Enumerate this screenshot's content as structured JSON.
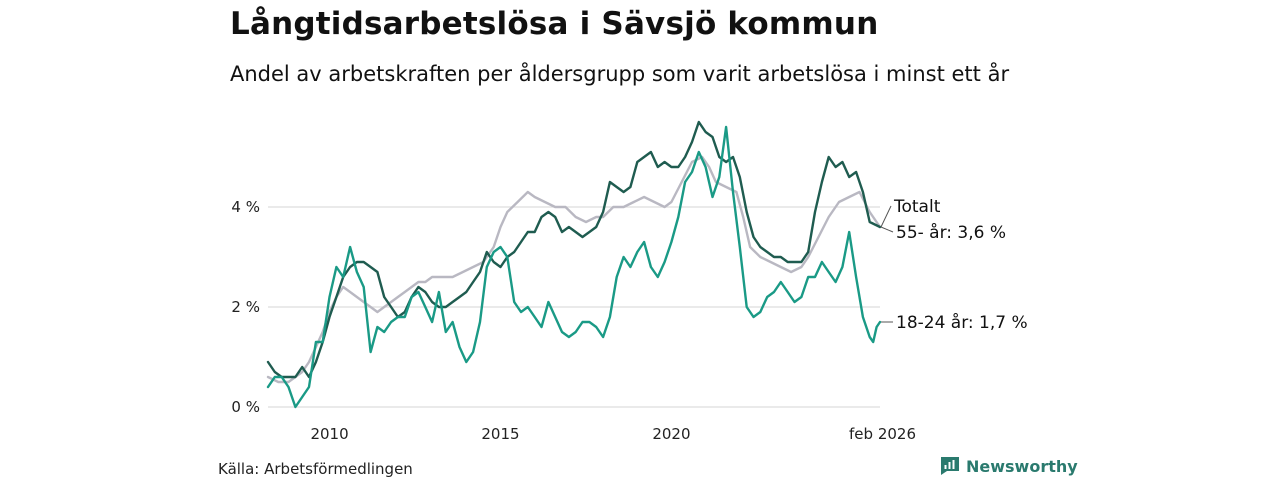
{
  "title": "Långtidsarbetslösa i Sävsjö kommun",
  "subtitle": "Andel av arbetskraften per åldersgrupp som varit arbetslösa i minst ett år",
  "source": "Källa: Arbetsförmedlingen",
  "brand": "Newsworthy",
  "chart_data": {
    "type": "line",
    "xlim": [
      2008.2,
      2026.1
    ],
    "ylim": [
      0,
      5.8
    ],
    "x_ticks": [
      {
        "value": 2010,
        "label": "2010"
      },
      {
        "value": 2015,
        "label": "2015"
      },
      {
        "value": 2020,
        "label": "2020"
      },
      {
        "value": 2026.1,
        "label": "feb 2026"
      }
    ],
    "y_ticks": [
      {
        "value": 0,
        "label": "0 %"
      },
      {
        "value": 2,
        "label": "2 %"
      },
      {
        "value": 4,
        "label": "4 %"
      }
    ],
    "grid": "horizontal",
    "series": [
      {
        "name": "Totalt",
        "color": "#b9b8c2",
        "end_label": "Totalt",
        "points": [
          [
            2008.2,
            0.6
          ],
          [
            2008.5,
            0.5
          ],
          [
            2008.8,
            0.5
          ],
          [
            2009.0,
            0.6
          ],
          [
            2009.2,
            0.7
          ],
          [
            2009.4,
            0.9
          ],
          [
            2009.6,
            1.2
          ],
          [
            2009.8,
            1.5
          ],
          [
            2010.0,
            1.9
          ],
          [
            2010.2,
            2.2
          ],
          [
            2010.4,
            2.4
          ],
          [
            2010.6,
            2.3
          ],
          [
            2010.8,
            2.2
          ],
          [
            2011.0,
            2.1
          ],
          [
            2011.2,
            2.0
          ],
          [
            2011.4,
            1.9
          ],
          [
            2011.6,
            2.0
          ],
          [
            2011.8,
            2.1
          ],
          [
            2012.0,
            2.2
          ],
          [
            2012.2,
            2.3
          ],
          [
            2012.4,
            2.4
          ],
          [
            2012.6,
            2.5
          ],
          [
            2012.8,
            2.5
          ],
          [
            2013.0,
            2.6
          ],
          [
            2013.3,
            2.6
          ],
          [
            2013.6,
            2.6
          ],
          [
            2013.9,
            2.7
          ],
          [
            2014.2,
            2.8
          ],
          [
            2014.5,
            2.9
          ],
          [
            2014.8,
            3.2
          ],
          [
            2015.0,
            3.6
          ],
          [
            2015.2,
            3.9
          ],
          [
            2015.5,
            4.1
          ],
          [
            2015.8,
            4.3
          ],
          [
            2016.0,
            4.2
          ],
          [
            2016.3,
            4.1
          ],
          [
            2016.6,
            4.0
          ],
          [
            2016.9,
            4.0
          ],
          [
            2017.2,
            3.8
          ],
          [
            2017.5,
            3.7
          ],
          [
            2017.8,
            3.8
          ],
          [
            2018.0,
            3.8
          ],
          [
            2018.3,
            4.0
          ],
          [
            2018.6,
            4.0
          ],
          [
            2018.9,
            4.1
          ],
          [
            2019.2,
            4.2
          ],
          [
            2019.5,
            4.1
          ],
          [
            2019.8,
            4.0
          ],
          [
            2020.0,
            4.1
          ],
          [
            2020.3,
            4.5
          ],
          [
            2020.6,
            4.9
          ],
          [
            2020.9,
            5.0
          ],
          [
            2021.1,
            4.8
          ],
          [
            2021.3,
            4.5
          ],
          [
            2021.6,
            4.4
          ],
          [
            2021.9,
            4.3
          ],
          [
            2022.1,
            3.8
          ],
          [
            2022.3,
            3.2
          ],
          [
            2022.6,
            3.0
          ],
          [
            2022.9,
            2.9
          ],
          [
            2023.2,
            2.8
          ],
          [
            2023.5,
            2.7
          ],
          [
            2023.8,
            2.8
          ],
          [
            2024.0,
            3.0
          ],
          [
            2024.3,
            3.4
          ],
          [
            2024.6,
            3.8
          ],
          [
            2024.9,
            4.1
          ],
          [
            2025.2,
            4.2
          ],
          [
            2025.5,
            4.3
          ],
          [
            2025.8,
            3.9
          ],
          [
            2026.1,
            3.6
          ]
        ]
      },
      {
        "name": "55- år",
        "color": "#1f5c50",
        "end_label": "55- år: 3,6 %",
        "points": [
          [
            2008.2,
            0.9
          ],
          [
            2008.4,
            0.7
          ],
          [
            2008.6,
            0.6
          ],
          [
            2008.8,
            0.6
          ],
          [
            2009.0,
            0.6
          ],
          [
            2009.2,
            0.8
          ],
          [
            2009.4,
            0.6
          ],
          [
            2009.6,
            0.9
          ],
          [
            2009.8,
            1.3
          ],
          [
            2010.0,
            1.8
          ],
          [
            2010.2,
            2.2
          ],
          [
            2010.4,
            2.6
          ],
          [
            2010.6,
            2.8
          ],
          [
            2010.8,
            2.9
          ],
          [
            2011.0,
            2.9
          ],
          [
            2011.2,
            2.8
          ],
          [
            2011.4,
            2.7
          ],
          [
            2011.6,
            2.2
          ],
          [
            2011.8,
            2.0
          ],
          [
            2012.0,
            1.8
          ],
          [
            2012.2,
            1.9
          ],
          [
            2012.4,
            2.2
          ],
          [
            2012.6,
            2.4
          ],
          [
            2012.8,
            2.3
          ],
          [
            2013.0,
            2.1
          ],
          [
            2013.2,
            2.0
          ],
          [
            2013.4,
            2.0
          ],
          [
            2013.6,
            2.1
          ],
          [
            2013.8,
            2.2
          ],
          [
            2014.0,
            2.3
          ],
          [
            2014.2,
            2.5
          ],
          [
            2014.4,
            2.7
          ],
          [
            2014.6,
            3.1
          ],
          [
            2014.8,
            2.9
          ],
          [
            2015.0,
            2.8
          ],
          [
            2015.2,
            3.0
          ],
          [
            2015.4,
            3.1
          ],
          [
            2015.6,
            3.3
          ],
          [
            2015.8,
            3.5
          ],
          [
            2016.0,
            3.5
          ],
          [
            2016.2,
            3.8
          ],
          [
            2016.4,
            3.9
          ],
          [
            2016.6,
            3.8
          ],
          [
            2016.8,
            3.5
          ],
          [
            2017.0,
            3.6
          ],
          [
            2017.2,
            3.5
          ],
          [
            2017.4,
            3.4
          ],
          [
            2017.6,
            3.5
          ],
          [
            2017.8,
            3.6
          ],
          [
            2018.0,
            3.9
          ],
          [
            2018.2,
            4.5
          ],
          [
            2018.4,
            4.4
          ],
          [
            2018.6,
            4.3
          ],
          [
            2018.8,
            4.4
          ],
          [
            2019.0,
            4.9
          ],
          [
            2019.2,
            5.0
          ],
          [
            2019.4,
            5.1
          ],
          [
            2019.6,
            4.8
          ],
          [
            2019.8,
            4.9
          ],
          [
            2020.0,
            4.8
          ],
          [
            2020.2,
            4.8
          ],
          [
            2020.4,
            5.0
          ],
          [
            2020.6,
            5.3
          ],
          [
            2020.8,
            5.7
          ],
          [
            2021.0,
            5.5
          ],
          [
            2021.2,
            5.4
          ],
          [
            2021.4,
            5.0
          ],
          [
            2021.6,
            4.9
          ],
          [
            2021.8,
            5.0
          ],
          [
            2022.0,
            4.6
          ],
          [
            2022.2,
            3.9
          ],
          [
            2022.4,
            3.4
          ],
          [
            2022.6,
            3.2
          ],
          [
            2022.8,
            3.1
          ],
          [
            2023.0,
            3.0
          ],
          [
            2023.2,
            3.0
          ],
          [
            2023.4,
            2.9
          ],
          [
            2023.6,
            2.9
          ],
          [
            2023.8,
            2.9
          ],
          [
            2024.0,
            3.1
          ],
          [
            2024.2,
            3.9
          ],
          [
            2024.4,
            4.5
          ],
          [
            2024.6,
            5.0
          ],
          [
            2024.8,
            4.8
          ],
          [
            2025.0,
            4.9
          ],
          [
            2025.2,
            4.6
          ],
          [
            2025.4,
            4.7
          ],
          [
            2025.6,
            4.3
          ],
          [
            2025.8,
            3.7
          ],
          [
            2026.1,
            3.6
          ]
        ]
      },
      {
        "name": "18-24 år",
        "color": "#1a9a86",
        "end_label": "18-24 år: 1,7 %",
        "points": [
          [
            2008.2,
            0.4
          ],
          [
            2008.4,
            0.6
          ],
          [
            2008.6,
            0.6
          ],
          [
            2008.8,
            0.4
          ],
          [
            2009.0,
            0.0
          ],
          [
            2009.2,
            0.2
          ],
          [
            2009.4,
            0.4
          ],
          [
            2009.6,
            1.3
          ],
          [
            2009.8,
            1.3
          ],
          [
            2010.0,
            2.2
          ],
          [
            2010.2,
            2.8
          ],
          [
            2010.4,
            2.6
          ],
          [
            2010.6,
            3.2
          ],
          [
            2010.8,
            2.7
          ],
          [
            2011.0,
            2.4
          ],
          [
            2011.2,
            1.1
          ],
          [
            2011.4,
            1.6
          ],
          [
            2011.6,
            1.5
          ],
          [
            2011.8,
            1.7
          ],
          [
            2012.0,
            1.8
          ],
          [
            2012.2,
            1.8
          ],
          [
            2012.4,
            2.2
          ],
          [
            2012.6,
            2.3
          ],
          [
            2012.8,
            2.0
          ],
          [
            2013.0,
            1.7
          ],
          [
            2013.2,
            2.3
          ],
          [
            2013.4,
            1.5
          ],
          [
            2013.6,
            1.7
          ],
          [
            2013.8,
            1.2
          ],
          [
            2014.0,
            0.9
          ],
          [
            2014.2,
            1.1
          ],
          [
            2014.4,
            1.7
          ],
          [
            2014.6,
            2.8
          ],
          [
            2014.8,
            3.1
          ],
          [
            2015.0,
            3.2
          ],
          [
            2015.2,
            3.0
          ],
          [
            2015.4,
            2.1
          ],
          [
            2015.6,
            1.9
          ],
          [
            2015.8,
            2.0
          ],
          [
            2016.0,
            1.8
          ],
          [
            2016.2,
            1.6
          ],
          [
            2016.4,
            2.1
          ],
          [
            2016.6,
            1.8
          ],
          [
            2016.8,
            1.5
          ],
          [
            2017.0,
            1.4
          ],
          [
            2017.2,
            1.5
          ],
          [
            2017.4,
            1.7
          ],
          [
            2017.6,
            1.7
          ],
          [
            2017.8,
            1.6
          ],
          [
            2018.0,
            1.4
          ],
          [
            2018.2,
            1.8
          ],
          [
            2018.4,
            2.6
          ],
          [
            2018.6,
            3.0
          ],
          [
            2018.8,
            2.8
          ],
          [
            2019.0,
            3.1
          ],
          [
            2019.2,
            3.3
          ],
          [
            2019.4,
            2.8
          ],
          [
            2019.6,
            2.6
          ],
          [
            2019.8,
            2.9
          ],
          [
            2020.0,
            3.3
          ],
          [
            2020.2,
            3.8
          ],
          [
            2020.4,
            4.5
          ],
          [
            2020.6,
            4.7
          ],
          [
            2020.8,
            5.1
          ],
          [
            2021.0,
            4.8
          ],
          [
            2021.2,
            4.2
          ],
          [
            2021.4,
            4.6
          ],
          [
            2021.6,
            5.6
          ],
          [
            2021.8,
            4.3
          ],
          [
            2022.0,
            3.2
          ],
          [
            2022.2,
            2.0
          ],
          [
            2022.4,
            1.8
          ],
          [
            2022.6,
            1.9
          ],
          [
            2022.8,
            2.2
          ],
          [
            2023.0,
            2.3
          ],
          [
            2023.2,
            2.5
          ],
          [
            2023.4,
            2.3
          ],
          [
            2023.6,
            2.1
          ],
          [
            2023.8,
            2.2
          ],
          [
            2024.0,
            2.6
          ],
          [
            2024.2,
            2.6
          ],
          [
            2024.4,
            2.9
          ],
          [
            2024.6,
            2.7
          ],
          [
            2024.8,
            2.5
          ],
          [
            2025.0,
            2.8
          ],
          [
            2025.2,
            3.5
          ],
          [
            2025.4,
            2.6
          ],
          [
            2025.6,
            1.8
          ],
          [
            2025.8,
            1.4
          ],
          [
            2025.9,
            1.3
          ],
          [
            2026.0,
            1.6
          ],
          [
            2026.1,
            1.7
          ]
        ]
      }
    ]
  }
}
